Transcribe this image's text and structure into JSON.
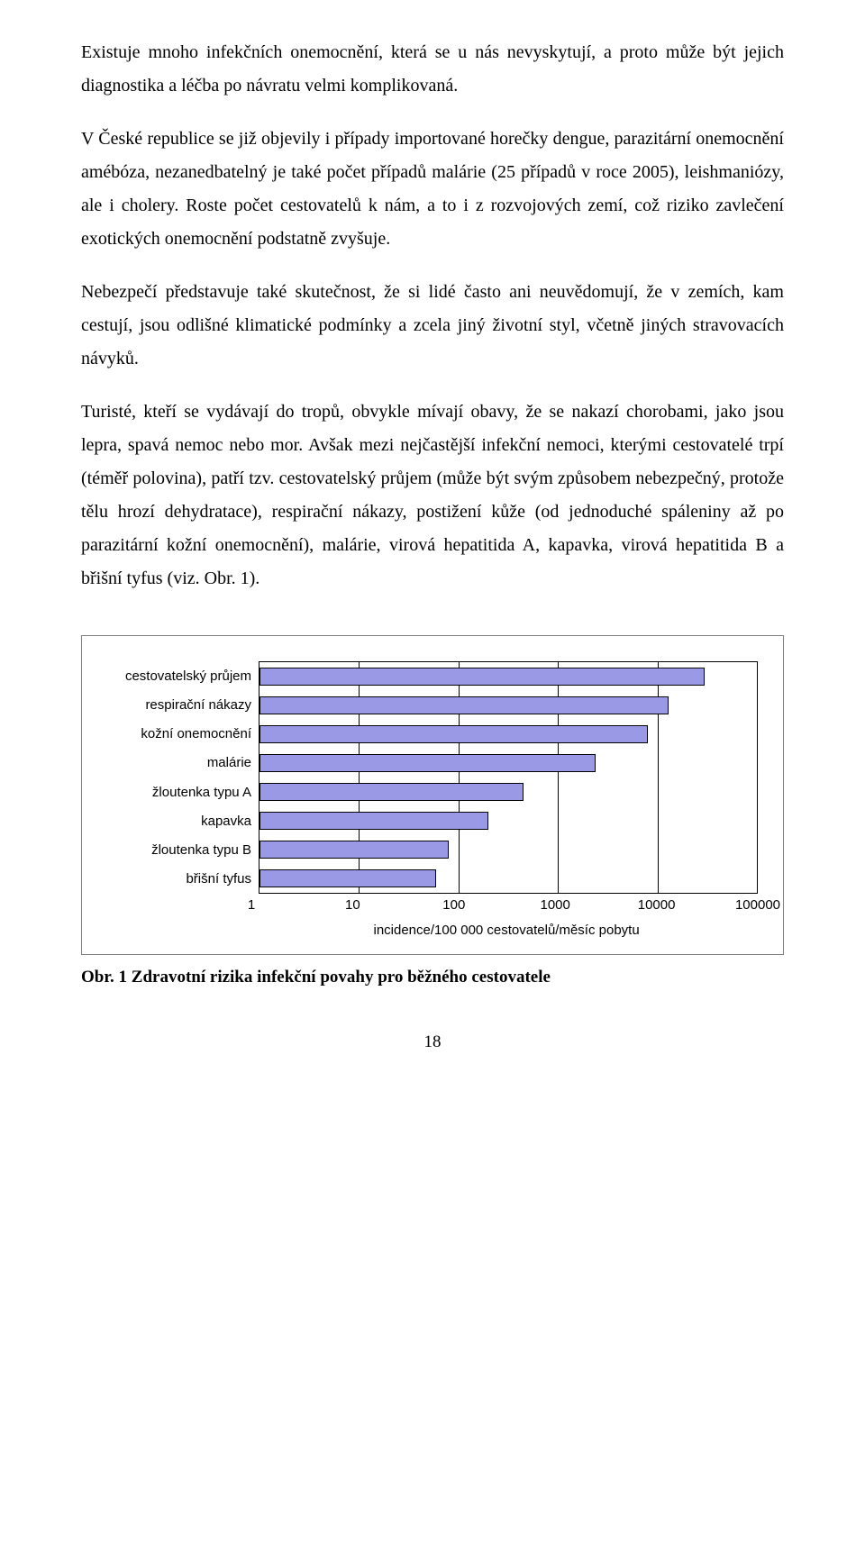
{
  "paragraphs": {
    "p1": "Existuje mnoho infekčních onemocnění, která se u nás nevyskytují, a proto může být jejich diagnostika a léčba po návratu velmi komplikovaná.",
    "p2": "V České republice se již objevily i případy importované horečky dengue, parazitární onemocnění amébóza, nezanedbatelný je také počet případů malárie (25 případů v roce 2005), leishmaniózy, ale i cholery. Roste počet cestovatelů k nám, a to i z rozvojových zemí, což riziko zavlečení exotických onemocnění podstatně zvyšuje.",
    "p3": "Nebezpečí představuje také skutečnost, že si lidé často ani neuvědomují, že v zemích, kam cestují, jsou odlišné klimatické podmínky a zcela jiný životní styl, včetně jiných stravovacích návyků.",
    "p4": "Turisté, kteří se vydávají do tropů, obvykle mívají obavy, že se nakazí chorobami, jako jsou lepra, spavá nemoc nebo mor. Avšak mezi nejčastější infekční nemoci, kterými cestovatelé trpí (téměř polovina), patří tzv. cestovatelský průjem (může být svým způsobem nebezpečný, protože tělu hrozí dehydratace), respirační nákazy, postižení kůže (od jednoduché spáleniny až po parazitární kožní onemocnění), malárie, virová hepatitida A, kapavka, virová hepatitida B a břišní tyfus (viz. Obr. 1)."
  },
  "chart": {
    "type": "bar-horizontal-log",
    "bar_color": "#9999e6",
    "bar_border_color": "#000000",
    "plot_border_color": "#000000",
    "grid_color": "#000000",
    "background_color": "#ffffff",
    "frame_border_color": "#7f7f7f",
    "x_scale": "log",
    "x_min": 1,
    "x_max": 100000,
    "x_ticks": [
      1,
      10,
      100,
      1000,
      10000,
      100000
    ],
    "x_tick_labels": [
      "1",
      "10",
      "100",
      "1000",
      "10000",
      "100000"
    ],
    "x_title": "incidence/100 000 cestovatelů/měsíc pobytu",
    "tick_fontsize": 15,
    "tick_fontfamily": "Arial",
    "categories": [
      {
        "label": "cestovatelský průjem",
        "value": 30000
      },
      {
        "label": "respirační nákazy",
        "value": 13000
      },
      {
        "label": "kožní onemocnění",
        "value": 8000
      },
      {
        "label": "malárie",
        "value": 2400
      },
      {
        "label": "žloutenka typu A",
        "value": 450
      },
      {
        "label": "kapavka",
        "value": 200
      },
      {
        "label": "žloutenka typu B",
        "value": 80
      },
      {
        "label": "břišní tyfus",
        "value": 60
      }
    ]
  },
  "caption": "Obr. 1 Zdravotní rizika infekční povahy pro běžného cestovatele",
  "page_number": "18"
}
